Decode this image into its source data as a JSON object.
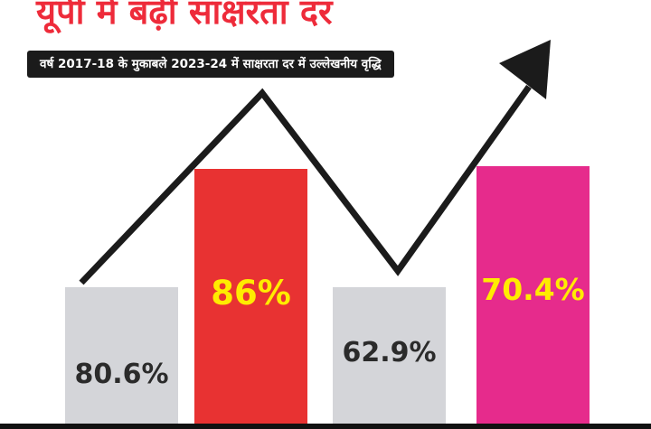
{
  "header": {
    "title": "यूपी में बढ़ी साक्षरता दर",
    "subtitle": "वर्ष 2017-18 के मुकाबले 2023-24 में साक्षरता दर में उल्लेखनीय वृद्धि"
  },
  "chart_data": {
    "type": "bar",
    "title": "यूपी में बढ़ी साक्षरता दर",
    "subtitle": "वर्ष 2017-18 के मुकाबले 2023-24 में साक्षरता दर में उल्लेखनीय वृद्धि",
    "categories": [
      "",
      "",
      "",
      ""
    ],
    "values": [
      80.6,
      86,
      62.9,
      70.4
    ],
    "labels": [
      "80.6%",
      "86%",
      "62.9%",
      "70.4%"
    ],
    "bar_colors": [
      "#d4d5d9",
      "#e83232",
      "#d4d5d9",
      "#e62b8c"
    ],
    "label_colors": [
      "#2b2b2b",
      "#ffec00",
      "#2b2b2b",
      "#ffec00"
    ],
    "ylim": [
      0,
      100
    ],
    "grid": false,
    "trend_arrow": true,
    "colors": {
      "title": "#ee2b3a",
      "subtitle_bg": "#1b1b1b",
      "arrow": "#1b1b1b"
    }
  }
}
